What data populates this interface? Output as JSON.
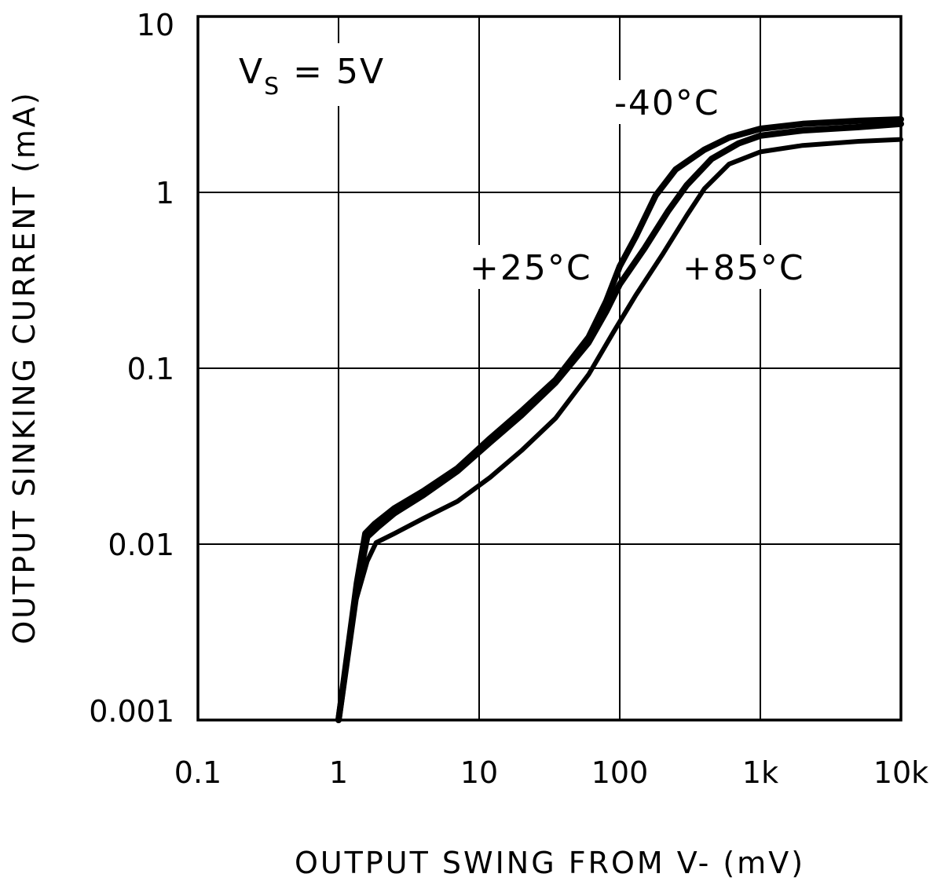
{
  "chart_data": {
    "type": "line",
    "title": "",
    "xlabel": "OUTPUT SWING FROM V- (mV)",
    "ylabel": "OUTPUT SINKING CURRENT (mA)",
    "xscale": "log",
    "yscale": "log",
    "xlim": [
      0.1,
      10000
    ],
    "ylim": [
      0.001,
      10
    ],
    "grid": true,
    "x_ticks": [
      0.1,
      1,
      10,
      100,
      1000,
      10000
    ],
    "x_tick_labels": [
      "0.1",
      "1",
      "10",
      "100",
      "1k",
      "10k"
    ],
    "y_ticks": [
      0.001,
      0.01,
      0.1,
      1,
      10
    ],
    "y_tick_labels": [
      "0.001",
      "0.01",
      "0.1",
      "1",
      "10"
    ],
    "condition": {
      "prefix": "V",
      "subscript": "S",
      "suffix": " = 5V"
    },
    "series": [
      {
        "name": "-40°C",
        "label": "-40°C",
        "points": [
          [
            1.0,
            0.001
          ],
          [
            1.35,
            0.006
          ],
          [
            1.55,
            0.0115
          ],
          [
            1.8,
            0.013
          ],
          [
            2.5,
            0.016
          ],
          [
            4,
            0.02
          ],
          [
            7,
            0.027
          ],
          [
            12,
            0.04
          ],
          [
            20,
            0.057
          ],
          [
            35,
            0.086
          ],
          [
            60,
            0.15
          ],
          [
            80,
            0.24
          ],
          [
            100,
            0.38
          ],
          [
            130,
            0.56
          ],
          [
            180,
            0.96
          ],
          [
            250,
            1.35
          ],
          [
            400,
            1.75
          ],
          [
            600,
            2.05
          ],
          [
            1000,
            2.3
          ],
          [
            2000,
            2.45
          ],
          [
            5000,
            2.55
          ],
          [
            10000,
            2.6
          ]
        ]
      },
      {
        "name": "+25°C",
        "label": "+25°C",
        "points": [
          [
            1.0,
            0.001
          ],
          [
            1.35,
            0.0055
          ],
          [
            1.6,
            0.011
          ],
          [
            1.9,
            0.0125
          ],
          [
            2.5,
            0.015
          ],
          [
            4,
            0.019
          ],
          [
            7,
            0.026
          ],
          [
            12,
            0.038
          ],
          [
            20,
            0.054
          ],
          [
            35,
            0.083
          ],
          [
            60,
            0.14
          ],
          [
            80,
            0.21
          ],
          [
            100,
            0.3
          ],
          [
            150,
            0.48
          ],
          [
            220,
            0.78
          ],
          [
            300,
            1.1
          ],
          [
            450,
            1.55
          ],
          [
            700,
            1.9
          ],
          [
            1000,
            2.1
          ],
          [
            2000,
            2.25
          ],
          [
            5000,
            2.35
          ],
          [
            10000,
            2.45
          ]
        ]
      },
      {
        "name": "+85°C",
        "label": "+85°C",
        "points": [
          [
            1.0,
            0.001
          ],
          [
            1.3,
            0.0045
          ],
          [
            1.6,
            0.008
          ],
          [
            1.85,
            0.0102
          ],
          [
            2.5,
            0.0115
          ],
          [
            4,
            0.014
          ],
          [
            7,
            0.0175
          ],
          [
            12,
            0.024
          ],
          [
            20,
            0.034
          ],
          [
            35,
            0.052
          ],
          [
            60,
            0.092
          ],
          [
            90,
            0.16
          ],
          [
            130,
            0.26
          ],
          [
            200,
            0.44
          ],
          [
            300,
            0.74
          ],
          [
            400,
            1.05
          ],
          [
            600,
            1.45
          ],
          [
            1000,
            1.7
          ],
          [
            2000,
            1.85
          ],
          [
            5000,
            1.95
          ],
          [
            10000,
            2.0
          ]
        ]
      }
    ]
  }
}
